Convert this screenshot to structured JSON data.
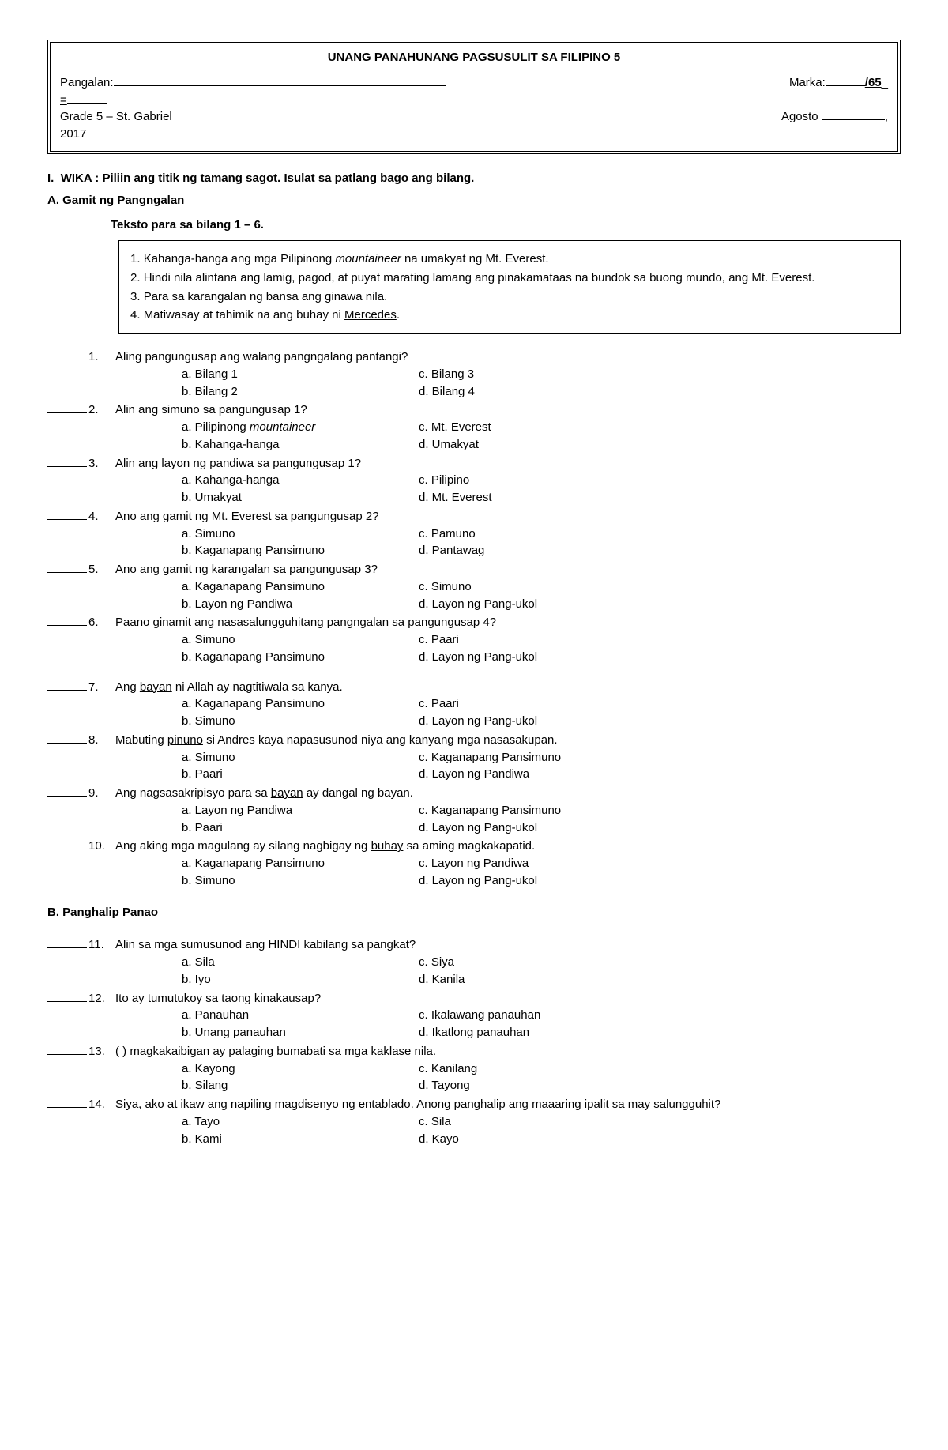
{
  "header": {
    "title": "UNANG PANAHUNANG PAGSUSULIT SA FILIPINO 5",
    "name_label": "Pangalan:",
    "score_label": "Marka:",
    "score_total": "/65",
    "grade_section": "Grade 5 – St. Gabriel",
    "month": "Agosto",
    "year": "2017",
    "equals": "="
  },
  "section1": {
    "roman": "I.",
    "title_underlined": "WIKA",
    "instruction": " : Piliin ang titik ng tamang sagot. Isulat sa patlang bago ang bilang."
  },
  "partA": {
    "heading": "A. Gamit ng Pangngalan",
    "texto_label": "Teksto para sa bilang 1 – 6.",
    "passage": [
      {
        "n": "1.",
        "pre": "Kahanga-hanga ang mga Pilipinong ",
        "it": "mountaineer",
        "post": " na umakyat ng Mt. Everest."
      },
      {
        "n": "2.",
        "pre": "Hindi nila alintana ang lamig, pagod, at puyat marating lamang ang pinakamataas na bundok sa buong mundo, ang Mt. Everest.",
        "it": "",
        "post": ""
      },
      {
        "n": "3.",
        "pre": "Para sa karangalan ng bansa ang ginawa nila.",
        "it": "",
        "post": ""
      },
      {
        "n": "4.",
        "pre": "Matiwasay at tahimik na ang buhay ni ",
        "it": "",
        "post": "",
        "ul": "Mercedes",
        "tail": "."
      }
    ]
  },
  "questions": [
    {
      "num": "1.",
      "text": "Aling pangungusap ang walang pangngalang pantangi?",
      "opts": {
        "a": "a. Bilang 1",
        "b": "b. Bilang 2",
        "c": "c. Bilang 3",
        "d": "d. Bilang 4"
      }
    },
    {
      "num": "2.",
      "text": "Alin ang simuno sa pangungusap 1?",
      "opts": {
        "a_pre": "a. Pilipinong ",
        "a_it": "mountaineer",
        "b": "b. Kahanga-hanga",
        "c": "c. Mt. Everest",
        "d": "d. Umakyat"
      }
    },
    {
      "num": "3.",
      "text": "Alin ang layon ng pandiwa sa pangungusap 1?",
      "opts": {
        "a": "a. Kahanga-hanga",
        "b": "b. Umakyat",
        "c": "c. Pilipino",
        "d": "d. Mt. Everest"
      }
    },
    {
      "num": "4.",
      "text": "Ano ang gamit ng Mt. Everest sa pangungusap 2?",
      "opts": {
        "a": "a. Simuno",
        "b": "b. Kaganapang Pansimuno",
        "c": "c. Pamuno",
        "d": "d. Pantawag"
      }
    },
    {
      "num": "5.",
      "text": "Ano ang gamit ng karangalan sa pangungusap 3?",
      "opts": {
        "a": "a. Kaganapang Pansimuno",
        "b": "b. Layon ng Pandiwa",
        "c": "c. Simuno",
        "d": "d. Layon ng Pang-ukol"
      }
    },
    {
      "num": "6.",
      "text": "Paano ginamit ang nasasalungguhitang pangngalan sa pangungusap 4?",
      "opts": {
        "a": "a. Simuno",
        "b": "b. Kaganapang Pansimuno",
        "c": "c. Paari",
        "d": "d. Layon ng Pang-ukol"
      }
    },
    {
      "num": "7.",
      "pre": "Ang ",
      "ul": "bayan",
      "post": " ni Allah ay nagtitiwala sa kanya.",
      "opts": {
        "a": "a. Kaganapang Pansimuno",
        "b": "b. Simuno",
        "c": "c. Paari",
        "d": "d. Layon ng Pang-ukol"
      }
    },
    {
      "num": "8.",
      "pre": "Mabuting ",
      "ul": "pinuno",
      "post": " si Andres kaya napasusunod niya ang kanyang mga nasasakupan.",
      "opts": {
        "a": "a. Simuno",
        "b": "b. Paari",
        "c": "c. Kaganapang Pansimuno",
        "d": "d. Layon ng Pandiwa"
      }
    },
    {
      "num": "9.",
      "pre": "Ang nagsasakripisyo para sa ",
      "ul": "bayan",
      "post": " ay dangal ng bayan.",
      "opts": {
        "a": "a. Layon ng Pandiwa",
        "b": "b. Paari",
        "c": "c. Kaganapang Pansimuno",
        "d": "d. Layon ng Pang-ukol"
      }
    },
    {
      "num": "10.",
      "pre": "Ang aking mga magulang ay silang nagbigay ng ",
      "ul": "buhay",
      "post": " sa aming magkakapatid.",
      "opts": {
        "a": "a. Kaganapang Pansimuno",
        "b": "b. Simuno",
        "c": "c. Layon ng Pandiwa",
        "d": "d. Layon ng Pang-ukol"
      }
    }
  ],
  "partB": {
    "heading": "B. Panghalip Panao"
  },
  "questionsB": [
    {
      "num": "11.",
      "text": "Alin sa mga sumusunod ang HINDI kabilang sa pangkat?",
      "opts": {
        "a": "a. Sila",
        "b": "b. Iyo",
        "c": "c. Siya",
        "d": "d. Kanila"
      }
    },
    {
      "num": "12.",
      "text": "Ito ay tumutukoy sa taong kinakausap?",
      "opts": {
        "a": "a. Panauhan",
        "b": "b. Unang panauhan",
        "c": "c. Ikalawang panauhan",
        "d": "d. Ikatlong panauhan"
      }
    },
    {
      "num": "13.",
      "text": "(  ) magkakaibigan ay palaging bumabati sa mga kaklase nila.",
      "opts": {
        "a": "a. Kayong",
        "b": "b. Silang",
        "c": "c. Kanilang",
        "d": "d. Tayong"
      }
    },
    {
      "num": "14.",
      "ul": "Siya, ako at ikaw",
      "post": " ang napiling magdisenyo ng entablado. Anong panghalip ang maaaring ipalit sa may salungguhit?",
      "opts": {
        "a": "a. Tayo",
        "b": "b. Kami",
        "c": "c. Sila",
        "d": "d. Kayo"
      }
    }
  ]
}
